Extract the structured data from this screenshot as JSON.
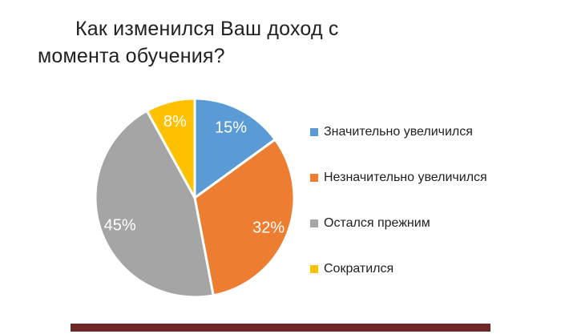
{
  "page": {
    "background": "#ffffff"
  },
  "chart_data": {
    "type": "pie",
    "title": "Как изменился Ваш доход с момента обучения?",
    "title_lines": [
      "Как изменился Ваш доход с",
      "момента обучения?"
    ],
    "categories": [
      "Значительно увеличился",
      "Незначительно увеличился",
      "Остался прежним",
      "Сократился"
    ],
    "values": [
      15,
      32,
      45,
      8
    ],
    "unit": "%",
    "slice_labels": [
      "15%",
      "32%",
      "45%",
      "8%"
    ],
    "colors": [
      "#5B9BD5",
      "#ED7D31",
      "#A5A5A5",
      "#FFC000"
    ],
    "slice_label_color": "#ffffff",
    "start_angle_deg": 0,
    "direction": "clockwise",
    "legend_position": "right",
    "slice_border_color": "#ffffff"
  },
  "progress_bar": {
    "color": "#6e2626"
  }
}
